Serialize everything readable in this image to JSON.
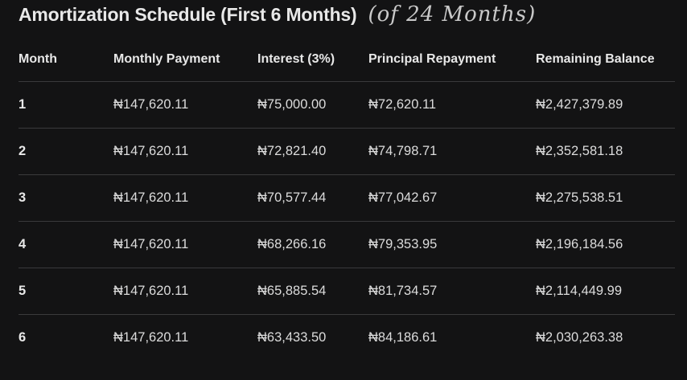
{
  "title": "Amortization Schedule (First 6 Months)",
  "annotation": "(of 24 Months)",
  "table": {
    "headers": [
      "Month",
      "Monthly Payment",
      "Interest (3%)",
      "Principal Repayment",
      "Remaining Balance"
    ],
    "rows": [
      [
        "1",
        "₦147,620.11",
        "₦75,000.00",
        "₦72,620.11",
        "₦2,427,379.89"
      ],
      [
        "2",
        "₦147,620.11",
        "₦72,821.40",
        "₦74,798.71",
        "₦2,352,581.18"
      ],
      [
        "3",
        "₦147,620.11",
        "₦70,577.44",
        "₦77,042.67",
        "₦2,275,538.51"
      ],
      [
        "4",
        "₦147,620.11",
        "₦68,266.16",
        "₦79,353.95",
        "₦2,196,184.56"
      ],
      [
        "5",
        "₦147,620.11",
        "₦65,885.54",
        "₦81,734.57",
        "₦2,114,449.99"
      ],
      [
        "6",
        "₦147,620.11",
        "₦63,433.50",
        "₦84,186.61",
        "₦2,030,263.38"
      ]
    ]
  },
  "colors": {
    "background": "#131314",
    "divider": "#3a3a3c",
    "text": "#e3e3e3"
  }
}
